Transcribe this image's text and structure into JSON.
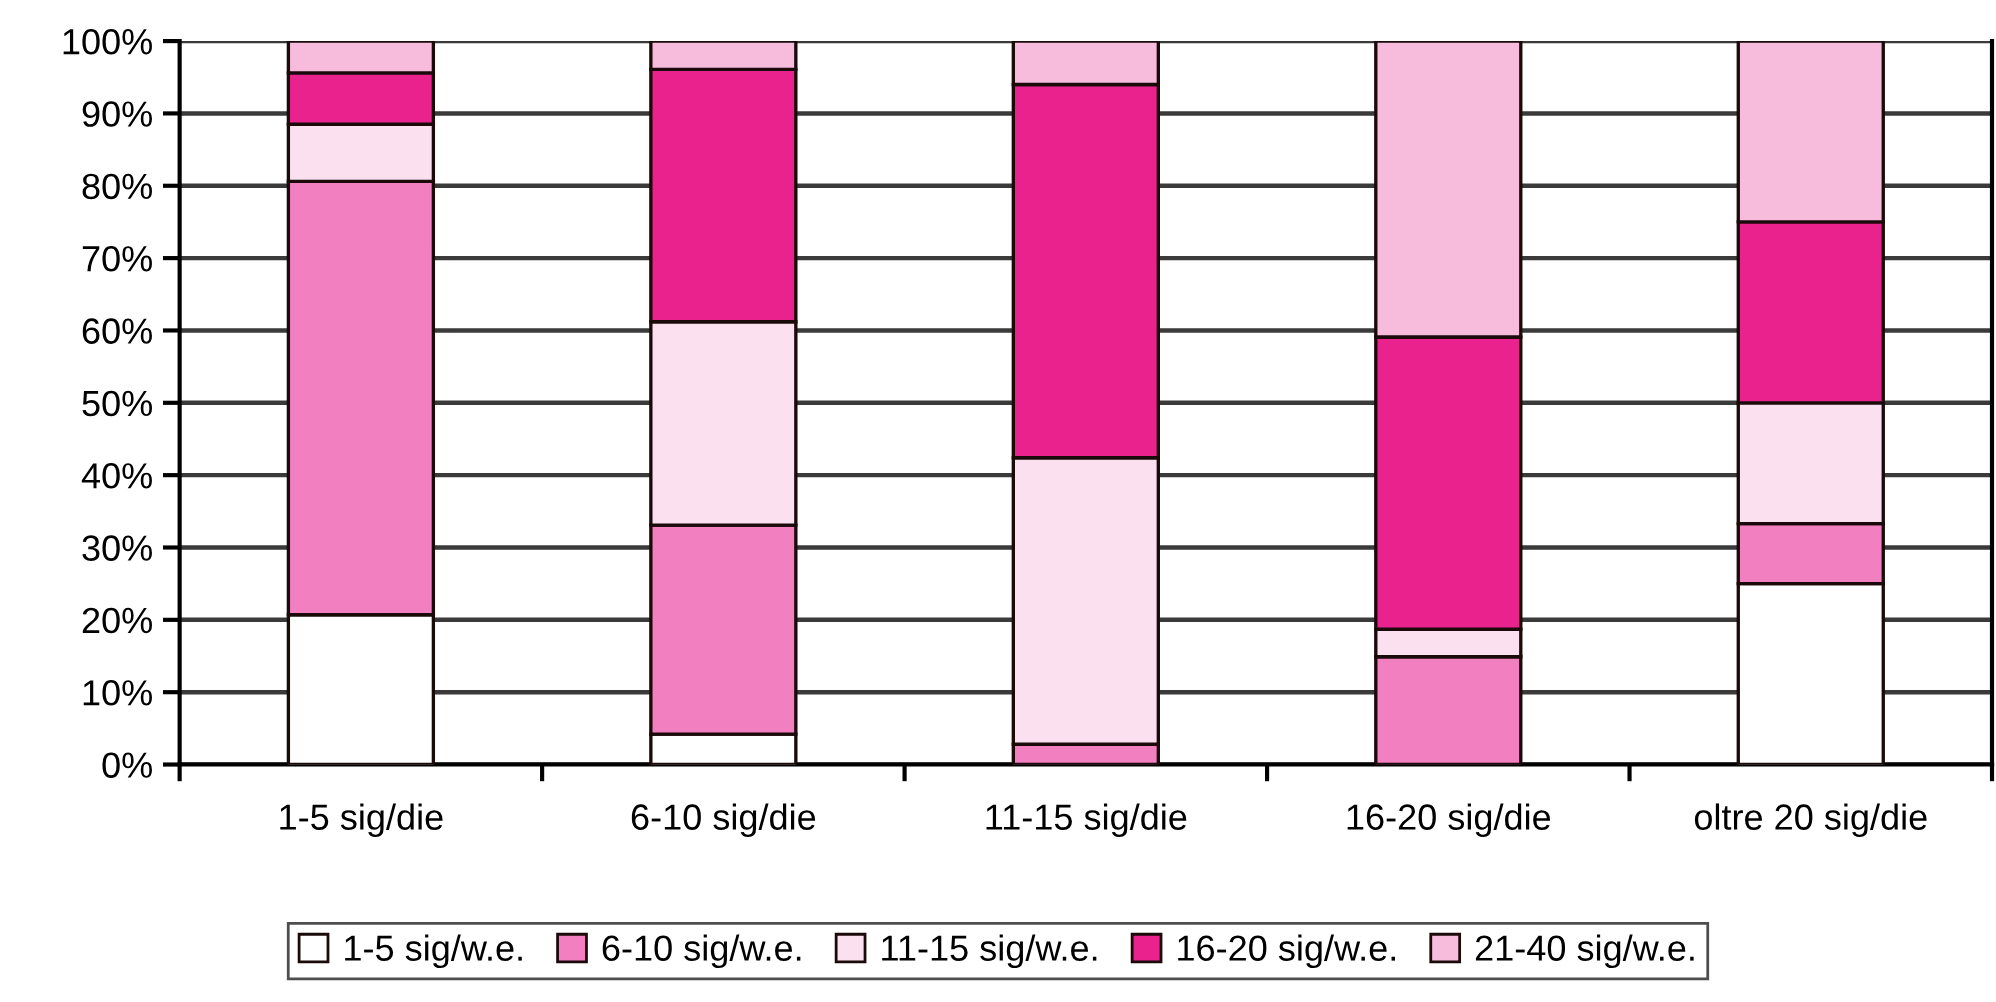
{
  "chart_data": {
    "type": "bar",
    "stacked": true,
    "categories": [
      "1-5 sig/die",
      "6-10 sig/die",
      "11-15 sig/die",
      "16-20 sig/die",
      "oltre 20 sig/die"
    ],
    "series": [
      {
        "name": "1-5 sig/w.e.",
        "color": "#ffffff",
        "values": [
          20.7,
          4.2,
          0,
          0,
          25
        ]
      },
      {
        "name": "6-10 sig/w.e.",
        "color": "#f27fbf",
        "values": [
          59.9,
          28.9,
          2.8,
          14.9,
          8.3
        ]
      },
      {
        "name": "11-15 sig/w.e.",
        "color": "#fbe1ef",
        "values": [
          7.9,
          28.1,
          39.6,
          3.8,
          16.7
        ]
      },
      {
        "name": "16-20 sig/w.e.",
        "color": "#ea228e",
        "values": [
          7.1,
          34.9,
          51.6,
          40.4,
          25
        ]
      },
      {
        "name": "21-40 sig/w.e.",
        "color": "#f7bcdc",
        "values": [
          4.4,
          3.9,
          6.0,
          40.9,
          25
        ]
      }
    ],
    "ylim": [
      0,
      100
    ],
    "yticks": [
      {
        "value": 0,
        "label": "0%"
      },
      {
        "value": 10,
        "label": "10%"
      },
      {
        "value": 20,
        "label": "20%"
      },
      {
        "value": 30,
        "label": "30%"
      },
      {
        "value": 40,
        "label": "40%"
      },
      {
        "value": 50,
        "label": "50%"
      },
      {
        "value": 60,
        "label": "60%"
      },
      {
        "value": 70,
        "label": "70%"
      },
      {
        "value": 80,
        "label": "80%"
      },
      {
        "value": 90,
        "label": "90%"
      },
      {
        "value": 100,
        "label": "100%"
      }
    ],
    "grid": "y",
    "legend": "bottom"
  }
}
